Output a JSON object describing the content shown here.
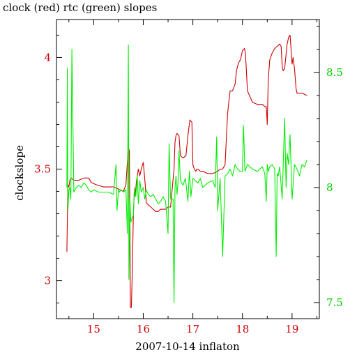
{
  "chart_data": {
    "type": "line",
    "title": "clock (red) rtc (green) slopes",
    "xlabel": "2007-10-14 inflaton",
    "ylabel": "clockslope",
    "y2label": "",
    "xlim": [
      14.25,
      19.55
    ],
    "ylim": [
      2.83,
      4.17
    ],
    "y2lim": [
      7.43,
      8.73
    ],
    "x_ticks": [
      15,
      16,
      17,
      18,
      19
    ],
    "x_tick_labels": [
      "15",
      "16",
      "17",
      "18",
      "19"
    ],
    "y_ticks": [
      3,
      3.5,
      4
    ],
    "y_tick_labels": [
      "3",
      "3.5",
      "4"
    ],
    "y2_ticks": [
      7.5,
      8,
      8.5
    ],
    "y2_tick_labels": [
      "7.5",
      "8",
      "8.5"
    ],
    "colors": {
      "clock": "#cc0000",
      "rtc": "#00ee00",
      "axis": "#000000",
      "tick_text_left": "#cc0000",
      "tick_text_right": "#00cc00"
    },
    "series": [
      {
        "axis": "left",
        "color": "#cc0000",
        "x": [
          14.46,
          14.48,
          14.5,
          14.52,
          14.55,
          14.6,
          14.7,
          14.8,
          14.9,
          14.95,
          15.05,
          15.2,
          15.4,
          15.5,
          15.6,
          15.65,
          15.7,
          15.72,
          15.74,
          15.76,
          15.78,
          15.8,
          15.82,
          15.84,
          15.86,
          15.9,
          15.93,
          15.96,
          16.0,
          16.02,
          16.04,
          16.06,
          16.1,
          16.15,
          16.2,
          16.25,
          16.3,
          16.35,
          16.4,
          16.45,
          16.5,
          16.55,
          16.62,
          16.64,
          16.66,
          16.68,
          16.72,
          16.75,
          16.8,
          16.86,
          16.9,
          16.94,
          16.98,
          17.0,
          17.03,
          17.06,
          17.08,
          17.1,
          17.15,
          17.2,
          17.3,
          17.4,
          17.5,
          17.55,
          17.6,
          17.65,
          17.7,
          17.75,
          17.8,
          17.85,
          17.88,
          17.9,
          17.93,
          17.96,
          18.0,
          18.04,
          18.06,
          18.1,
          18.2,
          18.3,
          18.4,
          18.45,
          18.48,
          18.5,
          18.52,
          18.55,
          18.6,
          18.65,
          18.7,
          18.75,
          18.78,
          18.8,
          18.82,
          18.85,
          18.9,
          18.93,
          18.96,
          19.0,
          19.02,
          19.05,
          19.08,
          19.1,
          19.15,
          19.2,
          19.3
        ],
        "y": [
          3.13,
          3.43,
          3.42,
          3.45,
          3.46,
          3.45,
          3.45,
          3.46,
          3.46,
          3.44,
          3.43,
          3.42,
          3.42,
          3.41,
          3.4,
          3.43,
          3.6,
          3.58,
          2.88,
          2.88,
          3.05,
          3.3,
          3.4,
          3.38,
          3.44,
          3.5,
          3.47,
          3.5,
          3.53,
          3.48,
          3.43,
          3.35,
          3.34,
          3.33,
          3.32,
          3.31,
          3.31,
          3.32,
          3.32,
          3.32,
          3.33,
          3.33,
          3.5,
          3.62,
          3.65,
          3.66,
          3.65,
          3.56,
          3.55,
          3.56,
          3.65,
          3.72,
          3.71,
          3.52,
          3.5,
          3.49,
          3.5,
          3.5,
          3.49,
          3.49,
          3.48,
          3.48,
          3.49,
          3.5,
          3.5,
          3.52,
          3.75,
          3.85,
          3.85,
          3.88,
          3.94,
          3.96,
          3.98,
          3.99,
          4.03,
          4.04,
          4.02,
          3.85,
          3.8,
          3.79,
          3.79,
          3.78,
          3.78,
          3.7,
          3.9,
          3.99,
          4.02,
          4.04,
          4.05,
          4.06,
          4.05,
          3.96,
          3.94,
          3.95,
          4.06,
          4.09,
          4.1,
          3.97,
          4.0,
          3.95,
          3.86,
          3.84,
          3.84,
          3.84,
          3.83
        ]
      },
      {
        "axis": "right",
        "color": "#00ee00",
        "x": [
          14.46,
          14.47,
          14.48,
          14.5,
          14.52,
          14.54,
          14.56,
          14.6,
          14.65,
          14.7,
          14.75,
          14.8,
          14.85,
          14.9,
          14.95,
          15.0,
          15.1,
          15.2,
          15.3,
          15.4,
          15.45,
          15.47,
          15.5,
          15.52,
          15.55,
          15.6,
          15.65,
          15.68,
          15.7,
          15.71,
          15.73,
          15.75,
          15.78,
          15.8,
          15.82,
          15.85,
          15.88,
          15.9,
          15.93,
          15.96,
          16.0,
          16.03,
          16.06,
          16.1,
          16.15,
          16.2,
          16.25,
          16.3,
          16.35,
          16.4,
          16.45,
          16.5,
          16.52,
          16.55,
          16.6,
          16.62,
          16.64,
          16.66,
          16.68,
          16.7,
          16.72,
          16.75,
          16.8,
          16.85,
          16.9,
          16.93,
          16.96,
          17.0,
          17.05,
          17.1,
          17.15,
          17.2,
          17.3,
          17.4,
          17.45,
          17.48,
          17.5,
          17.55,
          17.6,
          17.65,
          17.7,
          17.75,
          17.8,
          17.85,
          17.9,
          17.95,
          18.0,
          18.02,
          18.05,
          18.1,
          18.2,
          18.3,
          18.4,
          18.45,
          18.48,
          18.5,
          18.52,
          18.55,
          18.6,
          18.65,
          18.68,
          18.7,
          18.72,
          18.75,
          18.8,
          18.85,
          18.88,
          18.9,
          18.93,
          18.96,
          19.0,
          19.05,
          19.1,
          19.15,
          19.2,
          19.25,
          19.3
        ],
        "y": [
          8.0,
          8.52,
          7.9,
          7.99,
          8.0,
          7.95,
          8.6,
          7.98,
          8.0,
          8.01,
          8.0,
          8.02,
          8.01,
          7.99,
          7.98,
          7.99,
          7.98,
          7.98,
          7.98,
          7.97,
          8.1,
          7.9,
          7.99,
          7.98,
          7.99,
          7.98,
          7.99,
          7.8,
          8.62,
          7.6,
          7.95,
          7.85,
          7.87,
          7.88,
          8.0,
          7.96,
          8.05,
          7.93,
          8.03,
          7.98,
          8.0,
          7.95,
          7.99,
          7.97,
          7.96,
          7.97,
          7.95,
          7.93,
          7.94,
          7.96,
          7.94,
          7.8,
          8.19,
          7.95,
          7.95,
          7.5,
          8.0,
          8.05,
          7.97,
          8.02,
          8.16,
          8.03,
          8.01,
          8.04,
          7.94,
          8.07,
          7.96,
          8.04,
          8.03,
          8.02,
          8.04,
          8.0,
          8.02,
          8.03,
          8.0,
          8.22,
          7.9,
          8.04,
          7.7,
          8.05,
          8.06,
          8.08,
          8.05,
          8.1,
          8.08,
          8.07,
          8.07,
          8.27,
          8.07,
          8.1,
          8.08,
          8.07,
          8.09,
          8.06,
          7.94,
          8.1,
          8.07,
          8.09,
          8.1,
          8.08,
          7.7,
          8.06,
          8.05,
          8.09,
          7.95,
          8.3,
          8.0,
          8.15,
          8.1,
          8.23,
          7.95,
          8.1,
          8.08,
          8.05,
          8.1,
          8.09,
          8.12
        ]
      }
    ]
  }
}
